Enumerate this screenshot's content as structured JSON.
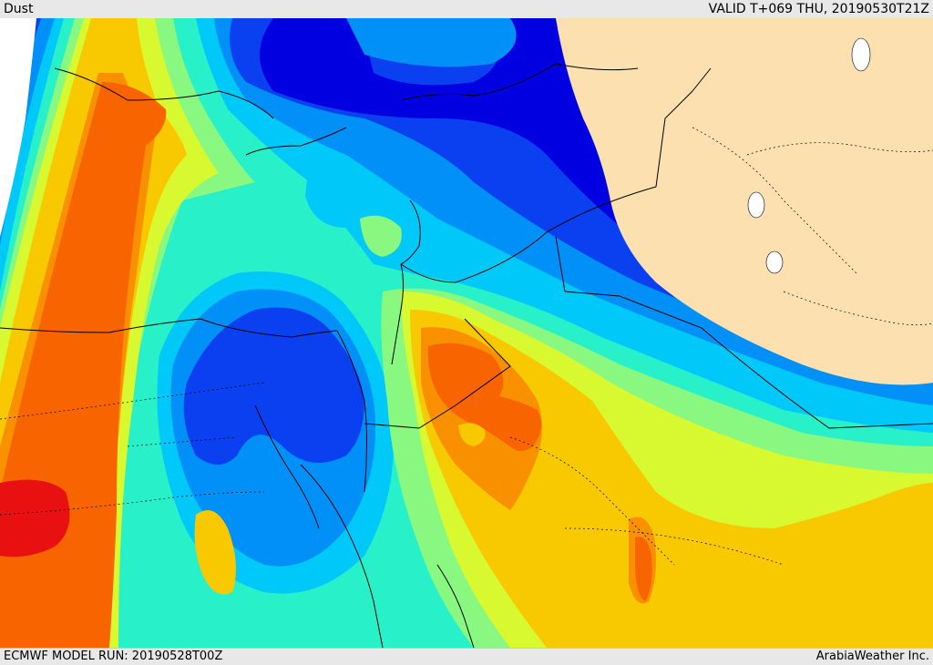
{
  "header": {
    "product_label": "Dust",
    "valid_time": "VALID T+069 THU, 20190530T21Z"
  },
  "footer": {
    "model_run": "ECMWF MODEL RUN: 20190528T00Z",
    "credit": "ArabiaWeather Inc."
  },
  "colors": {
    "land_no_data": "#fde0b0",
    "level_1": "#0000e0",
    "level_2": "#0a40f0",
    "level_3": "#0090f8",
    "level_4": "#00c8f8",
    "level_5": "#28f0c8",
    "level_6": "#88f880",
    "level_7": "#d8f830",
    "level_8": "#f8c800",
    "level_9": "#f89000",
    "level_10": "#f86400",
    "level_11": "#e81010",
    "boundary": "#000000"
  }
}
